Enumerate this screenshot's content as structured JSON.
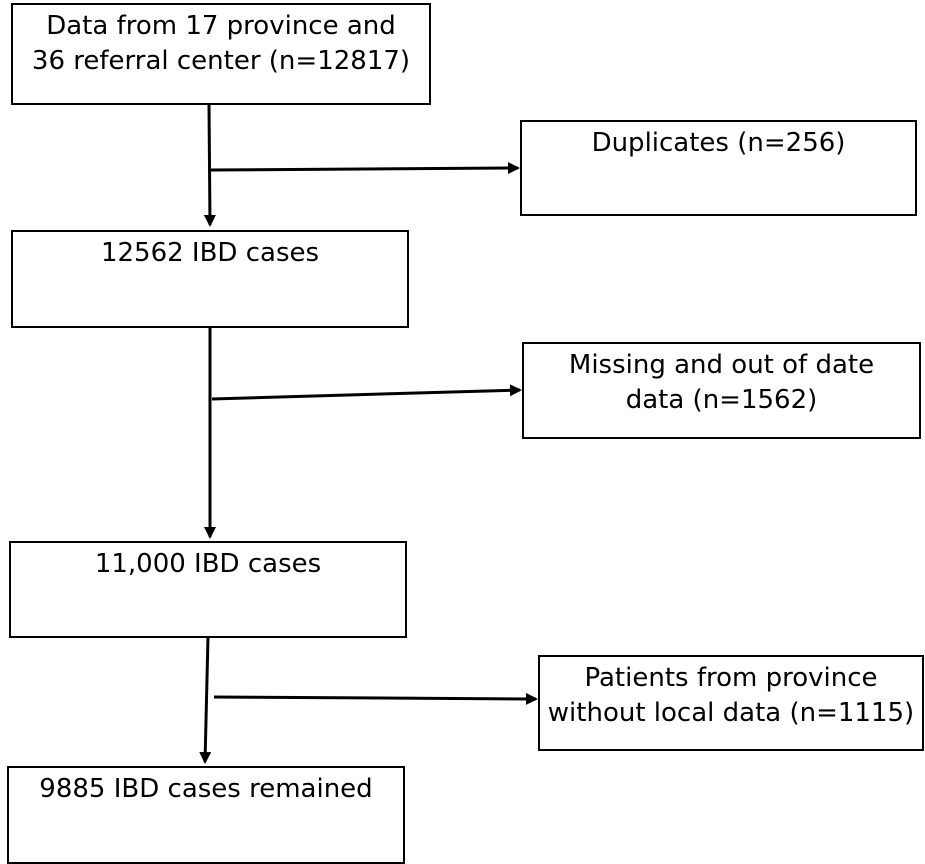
{
  "flowchart": {
    "main_boxes": [
      {
        "lines": [
          "Data from 17 province and",
          "36 referral center (n=12817)"
        ]
      },
      {
        "lines": [
          "12562 IBD cases"
        ]
      },
      {
        "lines": [
          "11,000 IBD cases"
        ]
      },
      {
        "lines": [
          "9885 IBD cases remained"
        ]
      }
    ],
    "exclusion_boxes": [
      {
        "lines": [
          "Duplicates (n=256)"
        ]
      },
      {
        "lines": [
          "Missing and out of date",
          "data (n=1562)"
        ]
      },
      {
        "lines": [
          "Patients from province",
          "without local data (n=1115)"
        ]
      }
    ]
  },
  "colors": {
    "stroke": "#000000",
    "background": "#ffffff",
    "text": "#000000"
  }
}
